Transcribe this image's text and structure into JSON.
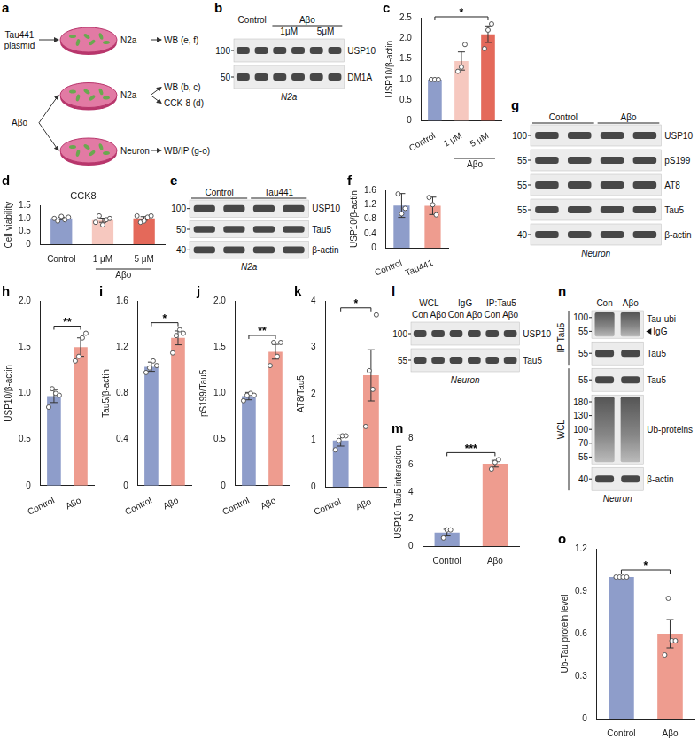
{
  "chart_data": [
    {
      "letter": "c",
      "type": "bar",
      "ylabel": "USP10/β-actin",
      "categories": [
        "Control",
        "1 μM",
        "5 μM"
      ],
      "values": [
        1.0,
        1.45,
        2.1
      ],
      "errors": [
        0.02,
        0.22,
        0.2
      ],
      "points": [
        [
          1.0,
          1.0,
          1.0
        ],
        [
          1.2,
          1.3,
          1.85
        ],
        [
          1.75,
          2.2,
          2.35
        ]
      ],
      "colors": [
        "#8e9dca",
        "#f6c8bf",
        "#e4695a"
      ],
      "ylim": [
        0,
        2.5
      ],
      "yticks": [
        0,
        0.5,
        {
          "value": 1,
          "label": "1.0"
        },
        1.5,
        {
          "value": 2,
          "label": "2.0"
        },
        2.5
      ],
      "group_labels": [
        {
          "text": "Aβo",
          "from": 1,
          "to": 2
        }
      ],
      "annotations": [
        {
          "text": "*",
          "from": 0,
          "to": 2
        }
      ],
      "grid": false
    },
    {
      "letter": "d",
      "type": "bar",
      "title": "CCK8",
      "ylabel": "Cell viability",
      "categories": [
        "Control",
        "1 μM",
        "5 μM"
      ],
      "values": [
        1.0,
        0.93,
        1.0
      ],
      "errors": [
        0.05,
        0.08,
        0.07
      ],
      "points": [
        [
          1.0,
          0.9,
          1.08,
          0.95,
          1.05
        ],
        [
          0.85,
          1.1,
          0.75,
          0.95,
          1.0
        ],
        [
          1.1,
          0.85,
          0.9,
          1.05,
          1.1
        ]
      ],
      "colors": [
        "#8e9dca",
        "#f6c8bf",
        "#e4695a"
      ],
      "ylim": [
        0,
        1.5
      ],
      "yticks": [
        0,
        0.5,
        {
          "value": 1,
          "label": "1.0"
        },
        1.5
      ],
      "group_labels": [
        {
          "text": "Aβo",
          "from": 1,
          "to": 2
        }
      ],
      "grid": false
    },
    {
      "letter": "f",
      "type": "bar",
      "ylabel": "USP10/β-actin",
      "categories": [
        "Control",
        "Tau441"
      ],
      "values": [
        1.18,
        1.17
      ],
      "errors": [
        0.33,
        0.24
      ],
      "points": [
        [
          1.5,
          0.95,
          1.1
        ],
        [
          1.4,
          1.2,
          0.92
        ]
      ],
      "colors": [
        "#8e9dca",
        "#ee9c8f"
      ],
      "ylim": [
        0,
        1.6
      ],
      "yticks": [
        0,
        0.4,
        0.8,
        1.2,
        1.6
      ],
      "grid": false
    },
    {
      "letter": "h",
      "type": "bar",
      "ylabel": "USP10/β-actin",
      "categories": [
        "Control",
        "Aβo"
      ],
      "values": [
        0.97,
        1.5
      ],
      "errors": [
        0.07,
        0.1
      ],
      "points": [
        [
          0.85,
          1.05,
          1.0,
          0.98
        ],
        [
          1.35,
          1.4,
          1.6,
          1.65
        ]
      ],
      "colors": [
        "#8e9dca",
        "#ee9c8f"
      ],
      "ylim": [
        0,
        2.0
      ],
      "yticks": [
        0,
        0.5,
        {
          "value": 1,
          "label": "1.0"
        },
        1.5,
        {
          "value": 2,
          "label": "2.0"
        }
      ],
      "annotations": [
        {
          "text": "**",
          "from": 0,
          "to": 1
        }
      ],
      "grid": false
    },
    {
      "letter": "i",
      "type": "bar",
      "ylabel": "Tau5/β-actin",
      "categories": [
        "Control",
        "Aβo"
      ],
      "values": [
        1.03,
        1.28
      ],
      "errors": [
        0.04,
        0.06
      ],
      "points": [
        [
          0.98,
          1.02,
          1.08,
          1.04
        ],
        [
          1.15,
          1.3,
          1.35,
          1.32
        ]
      ],
      "colors": [
        "#8e9dca",
        "#ee9c8f"
      ],
      "ylim": [
        0,
        1.6
      ],
      "yticks": [
        0,
        0.4,
        0.8,
        1.2,
        1.6
      ],
      "annotations": [
        {
          "text": "*",
          "from": 0,
          "to": 1
        }
      ],
      "grid": false
    },
    {
      "letter": "j",
      "type": "bar",
      "ylabel": "pS199/Tau5",
      "categories": [
        "Control",
        "Aβo"
      ],
      "values": [
        0.97,
        1.45
      ],
      "errors": [
        0.04,
        0.08
      ],
      "points": [
        [
          0.92,
          0.98,
          1.0,
          0.98
        ],
        [
          1.3,
          1.55,
          1.4,
          1.55
        ]
      ],
      "colors": [
        "#8e9dca",
        "#ee9c8f"
      ],
      "ylim": [
        0,
        2.0
      ],
      "yticks": [
        0,
        0.5,
        {
          "value": 1,
          "label": "1.0"
        },
        1.5,
        {
          "value": 2,
          "label": "2.0"
        }
      ],
      "annotations": [
        {
          "text": "**",
          "from": 0,
          "to": 1
        }
      ],
      "grid": false
    },
    {
      "letter": "k",
      "type": "bar",
      "ylabel": "AT8/Tau5",
      "categories": [
        "Control",
        "Aβo"
      ],
      "values": [
        1.0,
        2.4
      ],
      "errors": [
        0.12,
        0.55
      ],
      "points": [
        [
          0.8,
          1.0,
          1.1,
          1.1
        ],
        [
          1.3,
          2.5,
          2.1,
          3.7
        ]
      ],
      "colors": [
        "#8e9dca",
        "#ee9c8f"
      ],
      "ylim": [
        0,
        4
      ],
      "yticks": [
        0,
        1,
        2,
        3,
        4
      ],
      "annotations": [
        {
          "text": "*",
          "from": 0,
          "to": 1
        }
      ],
      "grid": false
    },
    {
      "letter": "m",
      "type": "bar",
      "ylabel": "USP10-Tau5 interaction",
      "categories": [
        "Control",
        "Aβo"
      ],
      "values": [
        1.0,
        6.1
      ],
      "errors": [
        0.25,
        0.25
      ],
      "points": [
        [
          0.6,
          1.2,
          1.2
        ],
        [
          5.7,
          6.2,
          6.4
        ]
      ],
      "colors": [
        "#8e9dca",
        "#ee9c8f"
      ],
      "ylim": [
        0,
        8
      ],
      "yticks": [
        0,
        2,
        4,
        6,
        8
      ],
      "annotations": [
        {
          "text": "***",
          "from": 0,
          "to": 1
        }
      ],
      "grid": false
    },
    {
      "letter": "o",
      "type": "bar",
      "ylabel": "Ub-Tau protein level",
      "categories": [
        "Control",
        "Aβo"
      ],
      "values": [
        1.0,
        0.6
      ],
      "errors": [
        0,
        0.1
      ],
      "points": [
        [
          1.0,
          1.0,
          1.0,
          1.0
        ],
        [
          0.45,
          0.85,
          0.55,
          0.55
        ]
      ],
      "colors": [
        "#8e9dca",
        "#ee9c8f"
      ],
      "ylim": [
        0,
        1.2
      ],
      "yticks": [
        0,
        0.3,
        0.6,
        0.9,
        1.2
      ],
      "annotations": [
        {
          "text": "*",
          "from": 0,
          "to": 1
        }
      ],
      "grid": false
    }
  ],
  "schematic": {
    "letter": "a",
    "sources": [
      {
        "text": "Tau441 plasmid",
        "to": [
          0
        ]
      },
      {
        "text": "Aβo",
        "to": [
          1,
          2
        ]
      }
    ],
    "dishes": [
      {
        "cell": "N2a",
        "outputs": [
          "WB (e, f)"
        ]
      },
      {
        "cell": "N2a",
        "outputs": [
          "WB (b, c)",
          "CCK-8 (d)"
        ]
      },
      {
        "cell": "Neuron",
        "outputs": [
          "WB/IP (g-o)"
        ]
      }
    ]
  },
  "blots": [
    {
      "letter": "b",
      "caption": "N2a",
      "lanes": 6,
      "headers": [
        {
          "text": "Control",
          "from": 0,
          "to": 1
        },
        {
          "text": "Aβo",
          "from": 2,
          "to": 5,
          "line": true
        }
      ],
      "subheaders": [
        {
          "text": "1μM",
          "from": 2,
          "to": 3
        },
        {
          "text": "5μM",
          "from": 4,
          "to": 5
        }
      ],
      "rows": [
        {
          "name": "USP10",
          "mw": [
            "100"
          ]
        },
        {
          "name": "DM1A",
          "mw": [
            "50"
          ]
        }
      ]
    },
    {
      "letter": "e",
      "caption": "N2a",
      "lanes": 4,
      "headers": [
        {
          "text": "Control",
          "from": 0,
          "to": 1,
          "line": true
        },
        {
          "text": "Tau441",
          "from": 2,
          "to": 3,
          "line": true
        }
      ],
      "rows": [
        {
          "name": "USP10",
          "mw": [
            "100"
          ]
        },
        {
          "name": "Tau5",
          "mw": [
            "50"
          ]
        },
        {
          "name": "β-actin",
          "mw": [
            "40"
          ]
        }
      ]
    },
    {
      "letter": "g",
      "caption": "Neuron",
      "lanes": 4,
      "headers": [
        {
          "text": "Control",
          "from": 0,
          "to": 1,
          "line": true
        },
        {
          "text": "Aβo",
          "from": 2,
          "to": 3,
          "line": true
        }
      ],
      "rows": [
        {
          "name": "USP10",
          "mw": [
            "100"
          ]
        },
        {
          "name": "pS199",
          "mw": [
            "55"
          ]
        },
        {
          "name": "AT8",
          "mw": [
            "55"
          ]
        },
        {
          "name": "Tau5",
          "mw": [
            "55"
          ]
        },
        {
          "name": "β-actin",
          "mw": [
            "40"
          ]
        }
      ]
    },
    {
      "letter": "l",
      "caption": "Neuron",
      "lanes": 6,
      "headers": [
        {
          "text": "WCL",
          "from": 0,
          "to": 1
        },
        {
          "text": "IgG",
          "from": 2,
          "to": 3
        },
        {
          "text": "IP:Tau5",
          "from": 4,
          "to": 5
        }
      ],
      "subheaders": [
        {
          "text": "Con",
          "from": 0,
          "to": 0
        },
        {
          "text": "Aβo",
          "from": 1,
          "to": 1
        },
        {
          "text": "Con",
          "from": 2,
          "to": 2
        },
        {
          "text": "Aβo",
          "from": 3,
          "to": 3
        },
        {
          "text": "Con",
          "from": 4,
          "to": 4
        },
        {
          "text": "Aβo",
          "from": 5,
          "to": 5
        }
      ],
      "rows": [
        {
          "name": "USP10",
          "mw": [
            "100"
          ]
        },
        {
          "name": "Tau5",
          "mw": [
            "55"
          ]
        }
      ]
    },
    {
      "letter": "n",
      "caption": "Neuron",
      "lanes": 2,
      "headers": [
        {
          "text": "Con",
          "from": 0,
          "to": 0
        },
        {
          "text": "Aβo",
          "from": 1,
          "to": 1
        }
      ],
      "side_groups": [
        {
          "text": "IP:Tau5",
          "from": 0,
          "to": 1
        },
        {
          "text": "WCL",
          "from": 2,
          "to": 4
        }
      ],
      "rows": [
        {
          "name": "Tau-ubi",
          "mw": [
            "100",
            "55"
          ],
          "note": "IgG"
        },
        {
          "name": "Tau5",
          "mw": [
            "55"
          ]
        },
        {
          "name": "Tau5",
          "mw": [
            "55"
          ]
        },
        {
          "name": "Ub-proteins",
          "mw": [
            "180",
            "130",
            "100",
            "70",
            "55"
          ]
        },
        {
          "name": "β-actin",
          "mw": [
            "40"
          ]
        }
      ]
    }
  ]
}
